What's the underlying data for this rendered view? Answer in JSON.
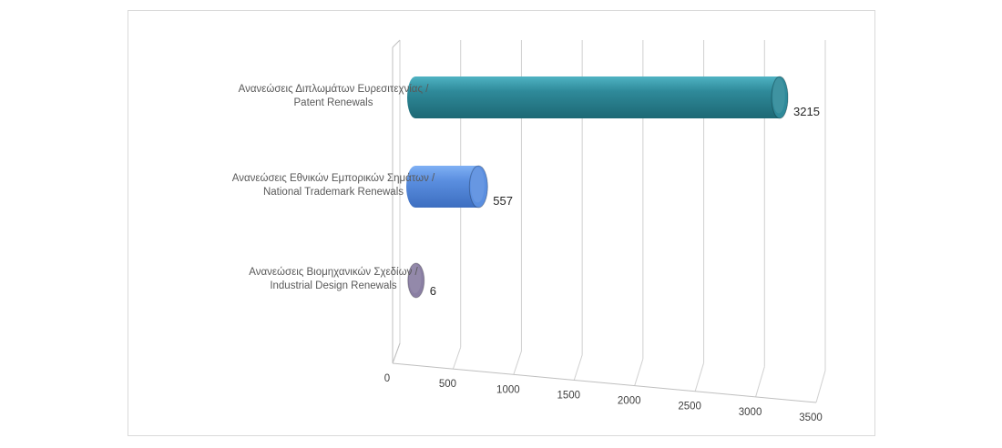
{
  "chart_data": {
    "type": "bar",
    "orientation": "horizontal",
    "style": "3d-cylinder",
    "categories": [
      [
        "Ανανεώσεις Διπλωμάτων Ευρεσιτεχνίας /",
        "Patent Renewals"
      ],
      [
        "Ανανεώσεις Εθνικών Εμπορικών Σημάτων /",
        "National Trademark Renewals"
      ],
      [
        "Ανανεώσεις Βιομηχανικών Σχεδίων  /",
        "Industrial Design Renewals"
      ]
    ],
    "values": [
      3215,
      557,
      6
    ],
    "data_labels": [
      "3215",
      "557",
      "6"
    ],
    "colors": [
      "#2f8a9a",
      "#5b8fe0",
      "#8a7fa3"
    ],
    "xlim": [
      0,
      3500
    ],
    "xticks": [
      0,
      500,
      1000,
      1500,
      2000,
      2500,
      3000,
      3500
    ],
    "grid": true,
    "legend": "none",
    "title": "",
    "xlabel": "",
    "ylabel": ""
  }
}
